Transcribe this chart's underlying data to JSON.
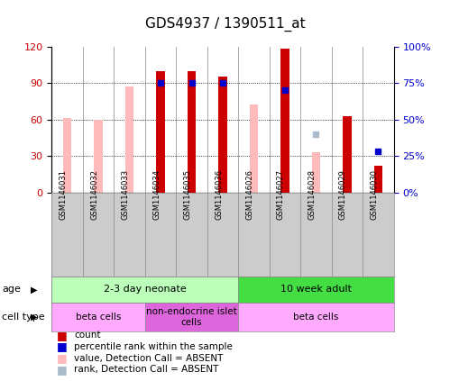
{
  "title": "GDS4937 / 1390511_at",
  "samples": [
    "GSM1146031",
    "GSM1146032",
    "GSM1146033",
    "GSM1146034",
    "GSM1146035",
    "GSM1146036",
    "GSM1146026",
    "GSM1146027",
    "GSM1146028",
    "GSM1146029",
    "GSM1146030"
  ],
  "count_values": [
    0,
    0,
    0,
    100,
    100,
    95,
    0,
    118,
    0,
    63,
    22
  ],
  "rank_values": [
    null,
    null,
    null,
    75,
    75,
    75,
    null,
    70,
    null,
    null,
    28
  ],
  "absent_value_bars": [
    61,
    60,
    87,
    0,
    0,
    0,
    72,
    0,
    33,
    0,
    0
  ],
  "absent_rank_vals": [
    null,
    null,
    null,
    null,
    null,
    null,
    null,
    null,
    40,
    null,
    null
  ],
  "ylim_left": [
    0,
    120
  ],
  "ylim_right": [
    0,
    100
  ],
  "yticks_left": [
    0,
    30,
    60,
    90,
    120
  ],
  "ytick_labels_left": [
    "0",
    "30",
    "60",
    "90",
    "120"
  ],
  "yticks_right": [
    0,
    25,
    50,
    75,
    100
  ],
  "ytick_labels_right": [
    "0%",
    "25%",
    "50%",
    "75%",
    "100%"
  ],
  "color_count": "#cc0000",
  "color_rank": "#0000cc",
  "color_absent_value": "#ffbbbb",
  "color_absent_rank": "#aabbcc",
  "bg_sample_labels": "#cccccc",
  "age_groups": [
    {
      "label": "2-3 day neonate",
      "start": 0,
      "end": 6,
      "color": "#bbffbb"
    },
    {
      "label": "10 week adult",
      "start": 6,
      "end": 11,
      "color": "#44dd44"
    }
  ],
  "cell_type_groups": [
    {
      "label": "beta cells",
      "start": 0,
      "end": 3,
      "color": "#ffaaff"
    },
    {
      "label": "non-endocrine islet\ncells",
      "start": 3,
      "end": 6,
      "color": "#dd66dd"
    },
    {
      "label": "beta cells",
      "start": 6,
      "end": 11,
      "color": "#ffaaff"
    }
  ],
  "legend_items": [
    {
      "color": "#cc0000",
      "label": "count"
    },
    {
      "color": "#0000cc",
      "label": "percentile rank within the sample"
    },
    {
      "color": "#ffbbbb",
      "label": "value, Detection Call = ABSENT"
    },
    {
      "color": "#aabbcc",
      "label": "rank, Detection Call = ABSENT"
    }
  ]
}
